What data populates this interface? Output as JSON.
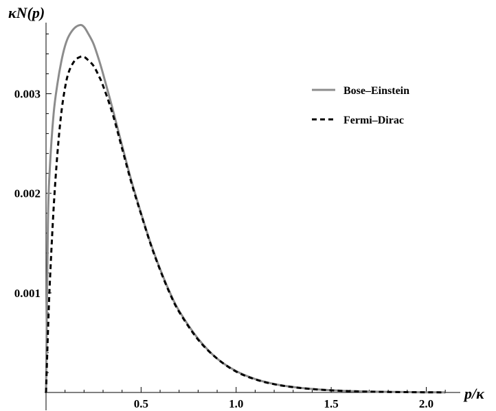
{
  "chart_data": {
    "type": "line",
    "title": "",
    "xlabel": "p/κ",
    "ylabel": "κN(p)",
    "xlim": [
      0,
      2.15
    ],
    "ylim": [
      0,
      0.0037
    ],
    "x_ticks": [
      0.5,
      1.0,
      1.5,
      2.0
    ],
    "x_tick_labels": [
      "0.5",
      "1.0",
      "1.5",
      "2.0"
    ],
    "y_ticks": [
      0.001,
      0.002,
      0.003
    ],
    "y_tick_labels": [
      "0.001",
      "0.002",
      "0.003"
    ],
    "grid": false,
    "legend_position": "top-right",
    "series": [
      {
        "name": "Bose–Einstein",
        "style": "solid",
        "color": "#8c8c8c",
        "x": [
          0,
          0.01,
          0.02,
          0.04,
          0.06,
          0.08,
          0.1,
          0.12,
          0.15,
          0.18,
          0.2,
          0.22,
          0.25,
          0.28,
          0.3,
          0.35,
          0.4,
          0.45,
          0.5,
          0.55,
          0.6,
          0.65,
          0.7,
          0.8,
          0.9,
          1.0,
          1.1,
          1.2,
          1.3,
          1.4,
          1.5,
          1.6,
          1.7,
          1.8,
          1.9,
          2.0,
          2.1
        ],
        "y": [
          0,
          0.0017,
          0.00225,
          0.0028,
          0.0031,
          0.00332,
          0.00348,
          0.00358,
          0.00366,
          0.00369,
          0.00367,
          0.00361,
          0.0035,
          0.00333,
          0.0032,
          0.00285,
          0.00248,
          0.00212,
          0.0018,
          0.0015,
          0.00124,
          0.00101,
          0.00082,
          0.00054,
          0.00034,
          0.000215,
          0.000135,
          8.5e-05,
          5.5e-05,
          3.5e-05,
          2.2e-05,
          1.4e-05,
          9e-06,
          6e-06,
          4e-06,
          2e-06,
          1e-06
        ]
      },
      {
        "name": "Fermi–Dirac",
        "style": "dashed",
        "color": "#000000",
        "x": [
          0,
          0.01,
          0.02,
          0.04,
          0.06,
          0.08,
          0.1,
          0.12,
          0.15,
          0.18,
          0.2,
          0.22,
          0.25,
          0.28,
          0.3,
          0.35,
          0.4,
          0.45,
          0.5,
          0.55,
          0.6,
          0.65,
          0.7,
          0.8,
          0.9,
          1.0,
          1.1,
          1.2,
          1.3,
          1.4,
          1.5,
          1.6,
          1.7,
          1.8,
          1.9,
          2.0,
          2.1
        ],
        "y": [
          0,
          0.0006,
          0.0011,
          0.00185,
          0.0024,
          0.0028,
          0.00306,
          0.00322,
          0.00333,
          0.00337,
          0.00337,
          0.00334,
          0.00328,
          0.00317,
          0.00308,
          0.0028,
          0.00245,
          0.0021,
          0.00179,
          0.00149,
          0.00123,
          0.001,
          0.00081,
          0.00053,
          0.00034,
          0.00021,
          0.000132,
          8.3e-05,
          5.3e-05,
          3.4e-05,
          2.1e-05,
          1.3e-05,
          8e-06,
          5e-06,
          3e-06,
          2e-06,
          1e-06
        ]
      }
    ]
  }
}
